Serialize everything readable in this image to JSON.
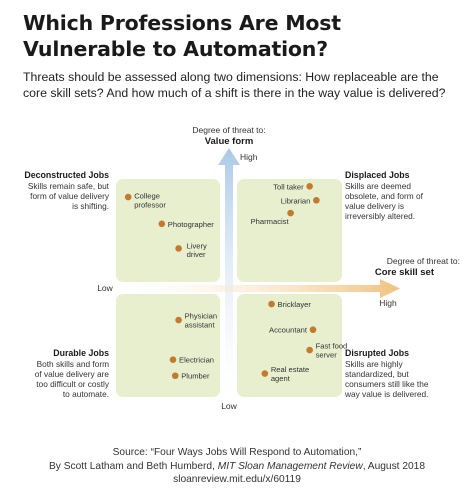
{
  "title": "Which Professions Are Most Vulnerable to Automation?",
  "subtitle": "Threats should be assessed along two dimensions: How replaceable are the core skill sets? And how much of a shift is there in the way value is delivered?",
  "colors": {
    "quadrant": "#e7efcf",
    "dot": "#c47a2c",
    "vertical_arrow": "#a9c9e6",
    "horizontal_arrow": "#f0c27f"
  },
  "chart_data": {
    "type": "scatter",
    "x_axis": {
      "label_line1": "Degree of threat to:",
      "label_line2": "Core skill set",
      "low": "Low",
      "high": "High"
    },
    "y_axis": {
      "label_line1": "Degree of threat to:",
      "label_line2": "Value form",
      "low": "Low",
      "high": "High"
    },
    "quadrants": [
      {
        "title": "Deconstructed Jobs",
        "lines": [
          "Skills remain safe, but",
          "form of value delivery",
          "is shifting."
        ]
      },
      {
        "title": "Displaced Jobs",
        "lines": [
          "Skills are deemed",
          "obsolete, and form of",
          "value delivery is",
          "irreversibly altered."
        ]
      },
      {
        "title": "Durable Jobs",
        "lines": [
          "Both skills and form",
          "of value delivery are",
          "too difficult or costly",
          "to automate."
        ]
      },
      {
        "title": "Disrupted Jobs",
        "lines": [
          "Skills are highly",
          "standardized, but",
          "consumers still like the",
          "way value is delivered."
        ]
      }
    ],
    "points": [
      {
        "label": [
          "College",
          "professor"
        ],
        "x": -0.9,
        "y": 0.85
      },
      {
        "label": [
          "Photographer"
        ],
        "x": -0.6,
        "y": 0.6
      },
      {
        "label": [
          "Livery",
          "driver"
        ],
        "x": -0.45,
        "y": 0.37
      },
      {
        "label": [
          "Toll taker"
        ],
        "x": 0.72,
        "y": 0.95
      },
      {
        "label": [
          "Librarian"
        ],
        "x": 0.78,
        "y": 0.82
      },
      {
        "label": [
          "Pharmacist"
        ],
        "x": 0.55,
        "y": 0.7
      },
      {
        "label": [
          "Physician",
          "assistant"
        ],
        "x": -0.45,
        "y": -0.3
      },
      {
        "label": [
          "Electrician"
        ],
        "x": -0.5,
        "y": -0.67
      },
      {
        "label": [
          "Plumber"
        ],
        "x": -0.48,
        "y": -0.82
      },
      {
        "label": [
          "Bricklayer"
        ],
        "x": 0.38,
        "y": -0.15
      },
      {
        "label": [
          "Accountant"
        ],
        "x": 0.75,
        "y": -0.39
      },
      {
        "label": [
          "Fast food",
          "server"
        ],
        "x": 0.72,
        "y": -0.58
      },
      {
        "label": [
          "Real estate",
          "agent"
        ],
        "x": 0.32,
        "y": -0.8
      }
    ]
  },
  "source": {
    "line1": "Source: “Four Ways Jobs Will Respond to Automation,”",
    "line2_pre": "By Scott Latham and Beth Humberd, ",
    "line2_ital": "MIT Sloan Management Review",
    "line2_post": ", August 2018",
    "line3": "sloanreview.mit.edu/x/60119"
  }
}
